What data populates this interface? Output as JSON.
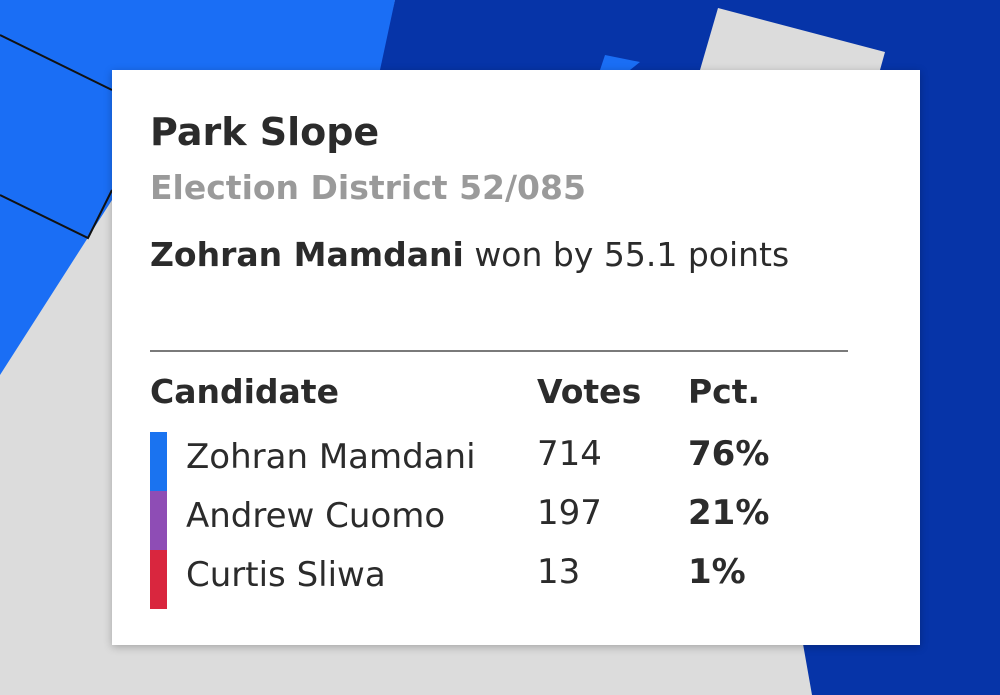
{
  "header": {
    "title": "Park Slope",
    "subtitle": "Election District 52/085"
  },
  "summary": {
    "winner": "Zohran Mamdani",
    "text": "won by 55.1 points"
  },
  "table": {
    "columns": [
      "Candidate",
      "Votes",
      "Pct."
    ],
    "rows": [
      {
        "name": "Zohran Mamdani",
        "votes": "714",
        "pct": "76%",
        "color": "#1a73f0"
      },
      {
        "name": "Andrew Cuomo",
        "votes": "197",
        "pct": "21%",
        "color": "#8e4db5"
      },
      {
        "name": "Curtis Sliwa",
        "votes": "13",
        "pct": "1%",
        "color": "#d9263e"
      }
    ]
  }
}
